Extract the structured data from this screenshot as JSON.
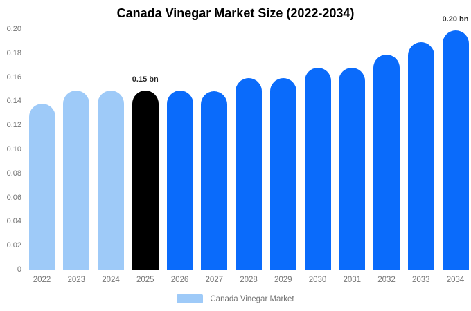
{
  "chart_data": {
    "type": "bar",
    "title": "Canada Vinegar Market Size (2022-2034)",
    "categories": [
      "2022",
      "2023",
      "2024",
      "2025",
      "2026",
      "2027",
      "2028",
      "2029",
      "2030",
      "2031",
      "2032",
      "2033",
      "2034"
    ],
    "values": [
      0.138,
      0.149,
      0.149,
      0.149,
      0.149,
      0.148,
      0.159,
      0.159,
      0.168,
      0.168,
      0.179,
      0.189,
      0.199
    ],
    "unit": "bn",
    "xlabel": "",
    "ylabel": "",
    "ylim": [
      0,
      0.2
    ],
    "yticks": [
      "0.20",
      "0.18",
      "0.16",
      "0.14",
      "0.12",
      "0.10",
      "0.08",
      "0.06",
      "0.04",
      "0.02",
      "0"
    ],
    "grid": false,
    "legend_position": "bottom",
    "bar_colors": [
      "#9ECAF8",
      "#9ECAF8",
      "#9ECAF8",
      "#000000",
      "#0A6BFB",
      "#0A6BFB",
      "#0A6BFB",
      "#0A6BFB",
      "#0A6BFB",
      "#0A6BFB",
      "#0A6BFB",
      "#0A6BFB",
      "#0A6BFB"
    ],
    "annotations": [
      {
        "category": "2025",
        "label": "0.15 bn"
      },
      {
        "category": "2034",
        "label": "0.20 bn"
      }
    ],
    "legend": [
      {
        "label": "Canada Vinegar Market",
        "color": "#9ECAF8"
      }
    ],
    "colors": {
      "bar_past": "#9ECAF8",
      "bar_current": "#000000",
      "bar_forecast": "#0A6BFB",
      "axis_text": "#757575",
      "annotation_text": "#262626",
      "axis_line": "#DDDDDD",
      "title_text": "#000000"
    }
  }
}
